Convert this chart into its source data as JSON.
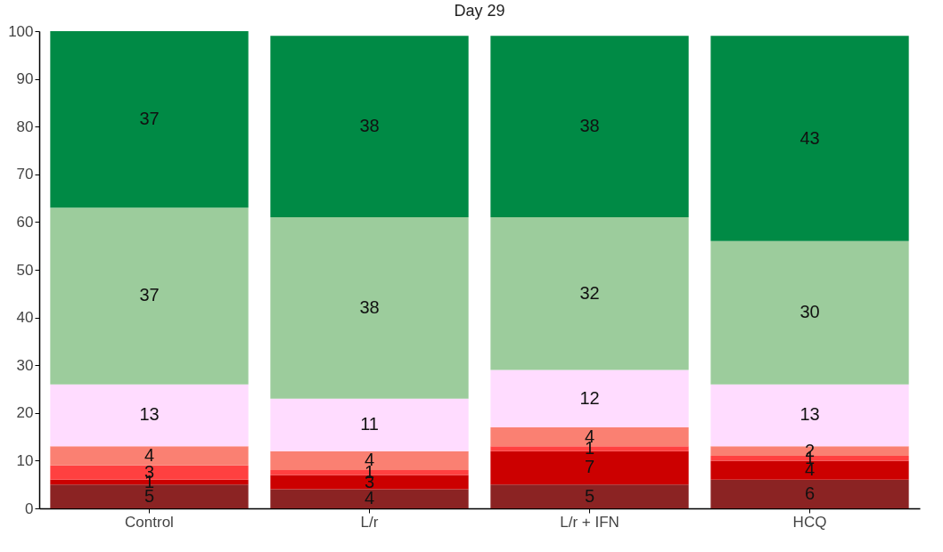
{
  "chart_data": {
    "type": "bar",
    "title": "Day 29",
    "categories": [
      "Control",
      "L/r",
      "L/r + IFN",
      "HCQ"
    ],
    "stacked": true,
    "data_labels": true,
    "ylim": [
      0,
      100
    ],
    "yticks": [
      0,
      10,
      20,
      30,
      40,
      50,
      60,
      70,
      80,
      90,
      100
    ],
    "grid": false,
    "series": [
      {
        "color": "#8b2323",
        "values": [
          5,
          4,
          5,
          6
        ]
      },
      {
        "color": "#cc0000",
        "values": [
          1,
          3,
          7,
          4
        ]
      },
      {
        "color": "#ff4040",
        "values": [
          3,
          1,
          1,
          1
        ]
      },
      {
        "color": "#fa8072",
        "values": [
          4,
          4,
          4,
          2
        ]
      },
      {
        "color": "#ffdcff",
        "values": [
          13,
          11,
          12,
          13
        ]
      },
      {
        "color": "#9ccc9c",
        "values": [
          37,
          38,
          32,
          30
        ]
      },
      {
        "color": "#008a45",
        "values": [
          37,
          38,
          38,
          43
        ]
      }
    ]
  }
}
